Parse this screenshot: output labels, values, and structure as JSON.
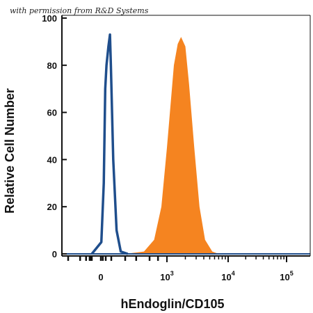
{
  "credit": "with permission from R&D Systems",
  "chart_data": {
    "type": "area",
    "title": "",
    "xlabel": "hEndoglin/CD105",
    "ylabel": "Relative Cell Number",
    "x_scale": "biexponential",
    "y_ticks": [
      "0",
      "20",
      "40",
      "60",
      "80",
      "100"
    ],
    "x_ticks": [
      {
        "base": "0",
        "exp": ""
      },
      {
        "base": "10",
        "exp": "3"
      },
      {
        "base": "10",
        "exp": "4"
      },
      {
        "base": "10",
        "exp": "5"
      }
    ],
    "ylim": [
      0,
      100
    ],
    "grid": false,
    "legend": "none",
    "series": [
      {
        "style": "outline",
        "color": "#1f4e8c",
        "points": [
          [
            -20,
            0
          ],
          [
            5,
            5
          ],
          [
            30,
            30
          ],
          [
            45,
            70
          ],
          [
            55,
            80
          ],
          [
            70,
            88
          ],
          [
            85,
            93
          ],
          [
            95,
            80
          ],
          [
            110,
            40
          ],
          [
            130,
            10
          ],
          [
            160,
            1
          ],
          [
            220,
            0
          ]
        ]
      },
      {
        "style": "filled",
        "color": "#f58420",
        "points": [
          [
            200,
            0
          ],
          [
            400,
            1
          ],
          [
            600,
            6
          ],
          [
            800,
            20
          ],
          [
            1000,
            45
          ],
          [
            1300,
            80
          ],
          [
            1500,
            89
          ],
          [
            1700,
            92
          ],
          [
            2000,
            88
          ],
          [
            2300,
            72
          ],
          [
            2800,
            45
          ],
          [
            3400,
            20
          ],
          [
            4200,
            6
          ],
          [
            5500,
            1
          ],
          [
            7000,
            0
          ]
        ]
      }
    ]
  },
  "colors": {
    "axis": "#111111",
    "baseline": "#1f4e8c"
  }
}
